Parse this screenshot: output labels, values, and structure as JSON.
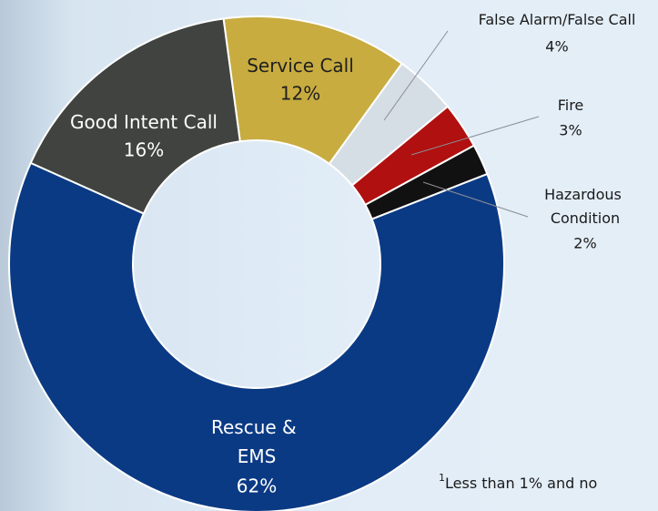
{
  "chart_data": {
    "type": "donut",
    "categories": [
      "Service Call",
      "False Alarm/False Call",
      "Fire",
      "Hazardous Condition",
      "Rescue & EMS",
      "Good Intent Call"
    ],
    "values": [
      12,
      4,
      3,
      2,
      62,
      16
    ],
    "value_labels": [
      "12%",
      "4%",
      "3%",
      "2%",
      "62%",
      "16%"
    ],
    "colors": [
      "#c8ac40",
      "#d5dde5",
      "#b0100f",
      "#111111",
      "#0b3a84",
      "#414340"
    ],
    "footnote_marker": "1",
    "footnote": "Less than 1% and no"
  }
}
